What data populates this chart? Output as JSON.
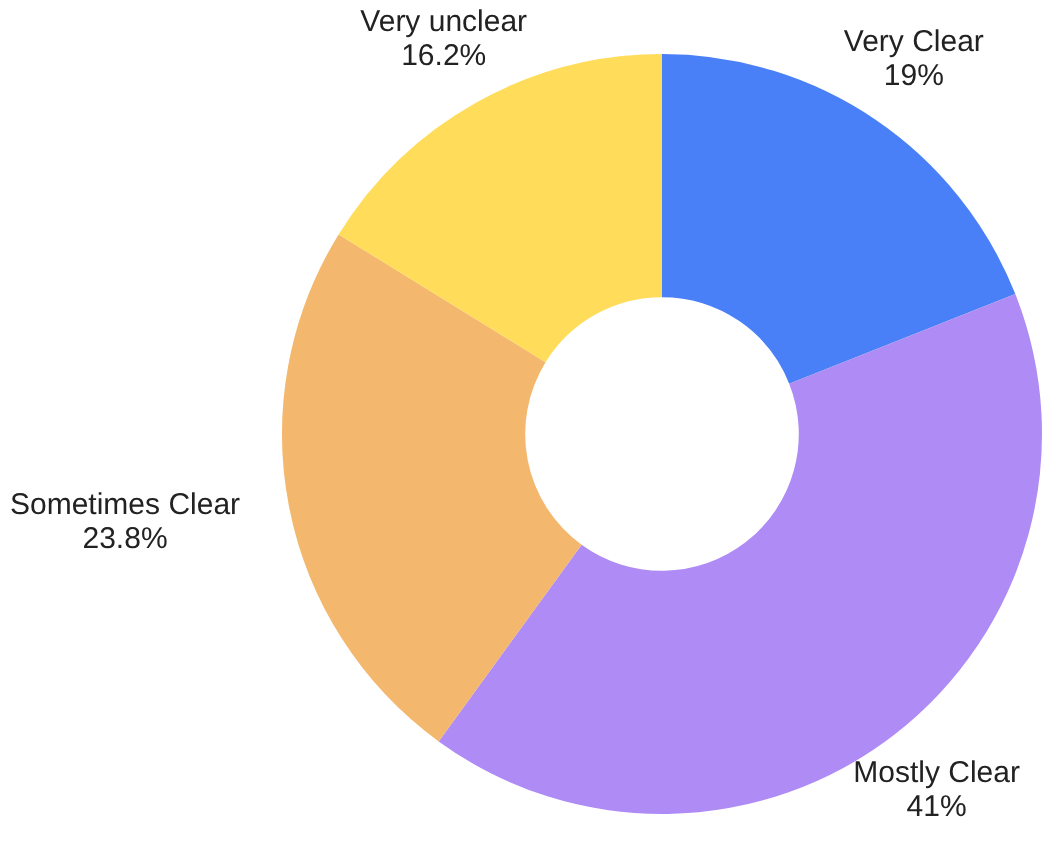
{
  "chart_data": {
    "type": "donut",
    "categories": [
      "Very Clear",
      "Mostly Clear",
      "Sometimes Clear",
      "Very unclear"
    ],
    "values": [
      19,
      41,
      23.8,
      16.2
    ],
    "value_labels": [
      "19%",
      "41%",
      "23.8%",
      "16.2%"
    ],
    "colors": [
      "#4a80f7",
      "#ae8bf5",
      "#f3b86e",
      "#ffdc5a"
    ],
    "legend": false
  }
}
